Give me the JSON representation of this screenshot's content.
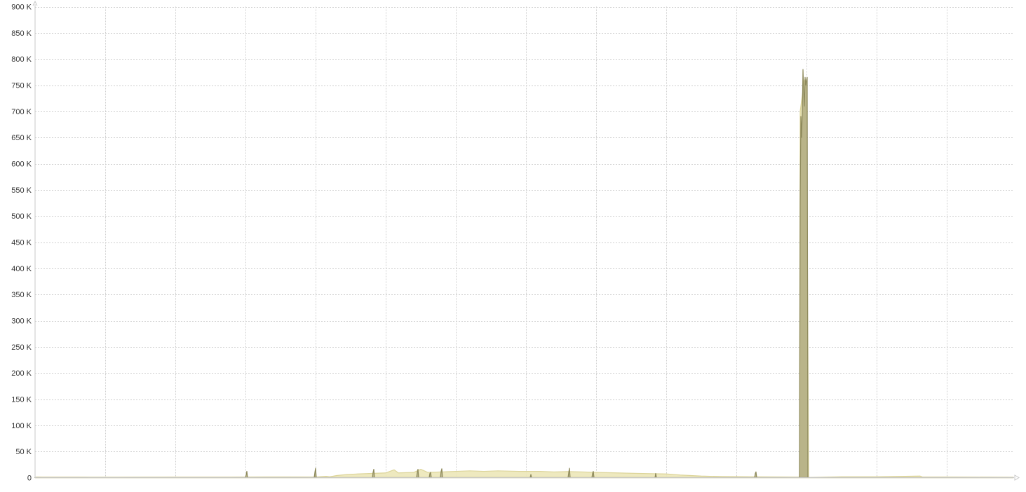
{
  "chart_data": {
    "type": "area",
    "title": "",
    "xlabel": "",
    "ylabel": "",
    "ylim": [
      0,
      900000
    ],
    "xlim": [
      0,
      1395
    ],
    "grid": true,
    "y_ticks": [
      {
        "value": 0,
        "label": "0"
      },
      {
        "value": 50000,
        "label": "50 K"
      },
      {
        "value": 100000,
        "label": "100 K"
      },
      {
        "value": 150000,
        "label": "150 K"
      },
      {
        "value": 200000,
        "label": "200 K"
      },
      {
        "value": 250000,
        "label": "250 K"
      },
      {
        "value": 300000,
        "label": "300 K"
      },
      {
        "value": 350000,
        "label": "350 K"
      },
      {
        "value": 400000,
        "label": "400 K"
      },
      {
        "value": 450000,
        "label": "450 K"
      },
      {
        "value": 500000,
        "label": "500 K"
      },
      {
        "value": 550000,
        "label": "550 K"
      },
      {
        "value": 600000,
        "label": "600 K"
      },
      {
        "value": 650000,
        "label": "650 K"
      },
      {
        "value": 700000,
        "label": "700 K"
      },
      {
        "value": 750000,
        "label": "750 K"
      },
      {
        "value": 800000,
        "label": "800 K"
      },
      {
        "value": 850000,
        "label": "850 K"
      },
      {
        "value": 900000,
        "label": "900 K"
      }
    ],
    "x_gridlines": [
      0,
      100,
      200,
      300,
      400,
      500,
      600,
      700,
      800,
      900,
      1000,
      1100,
      1200,
      1300
    ],
    "series": [
      {
        "color": "#ece7b8",
        "stroke": "#ddd59a",
        "points": [
          [
            0,
            0
          ],
          [
            2,
            1000
          ],
          [
            10,
            900
          ],
          [
            60,
            800
          ],
          [
            120,
            700
          ],
          [
            200,
            800
          ],
          [
            280,
            900
          ],
          [
            350,
            1200
          ],
          [
            400,
            1000
          ],
          [
            415,
            2500
          ],
          [
            420,
            1500
          ],
          [
            430,
            4000
          ],
          [
            445,
            6000
          ],
          [
            460,
            7000
          ],
          [
            480,
            8000
          ],
          [
            500,
            9000
          ],
          [
            512,
            15000
          ],
          [
            518,
            9000
          ],
          [
            540,
            10000
          ],
          [
            550,
            16000
          ],
          [
            560,
            10000
          ],
          [
            580,
            11000
          ],
          [
            600,
            12000
          ],
          [
            620,
            13000
          ],
          [
            640,
            12000
          ],
          [
            660,
            13000
          ],
          [
            690,
            12000
          ],
          [
            720,
            12000
          ],
          [
            740,
            11000
          ],
          [
            760,
            11500
          ],
          [
            780,
            11000
          ],
          [
            800,
            10000
          ],
          [
            830,
            9000
          ],
          [
            860,
            8000
          ],
          [
            900,
            7000
          ],
          [
            920,
            5000
          ],
          [
            950,
            3000
          ],
          [
            980,
            2000
          ],
          [
            1020,
            1500
          ],
          [
            1060,
            1200
          ],
          [
            1090,
            900
          ],
          [
            1091,
            700000
          ],
          [
            1093,
            720000
          ],
          [
            1097,
            760000
          ],
          [
            1100,
            750000
          ],
          [
            1103,
            0
          ],
          [
            1150,
            1500
          ],
          [
            1200,
            1500
          ],
          [
            1262,
            3000
          ],
          [
            1265,
            1200
          ],
          [
            1330,
            900
          ],
          [
            1395,
            500
          ]
        ]
      },
      {
        "color": "#b3ae83",
        "stroke": "#8e8a5c",
        "points": [
          [
            0,
            0
          ],
          [
            300,
            0
          ],
          [
            301,
            5000
          ],
          [
            302,
            12000
          ],
          [
            303,
            0
          ],
          [
            398,
            0
          ],
          [
            399,
            10000
          ],
          [
            400,
            18000
          ],
          [
            401,
            0
          ],
          [
            481,
            0
          ],
          [
            482,
            10000
          ],
          [
            483,
            16000
          ],
          [
            484,
            0
          ],
          [
            544,
            0
          ],
          [
            545,
            10000
          ],
          [
            546,
            16000
          ],
          [
            547,
            0
          ],
          [
            562,
            0
          ],
          [
            563,
            8000
          ],
          [
            564,
            10000
          ],
          [
            565,
            0
          ],
          [
            578,
            0
          ],
          [
            579,
            12000
          ],
          [
            580,
            17000
          ],
          [
            581,
            0
          ],
          [
            706,
            0
          ],
          [
            707,
            6000
          ],
          [
            708,
            0
          ],
          [
            760,
            0
          ],
          [
            761,
            10000
          ],
          [
            762,
            18000
          ],
          [
            763,
            0
          ],
          [
            794,
            0
          ],
          [
            795,
            8000
          ],
          [
            796,
            12000
          ],
          [
            797,
            0
          ],
          [
            884,
            0
          ],
          [
            885,
            8000
          ],
          [
            886,
            0
          ],
          [
            1026,
            0
          ],
          [
            1027,
            8000
          ],
          [
            1028,
            11000
          ],
          [
            1029,
            0
          ],
          [
            1090,
            0
          ],
          [
            1091,
            530000
          ],
          [
            1092,
            690000
          ],
          [
            1093,
            650000
          ],
          [
            1094,
            700000
          ],
          [
            1095,
            780000
          ],
          [
            1096,
            740000
          ],
          [
            1097,
            710000
          ],
          [
            1098,
            765000
          ],
          [
            1099,
            750000
          ],
          [
            1100,
            760000
          ],
          [
            1101,
            765000
          ],
          [
            1102,
            0
          ],
          [
            1395,
            0
          ]
        ]
      }
    ]
  }
}
